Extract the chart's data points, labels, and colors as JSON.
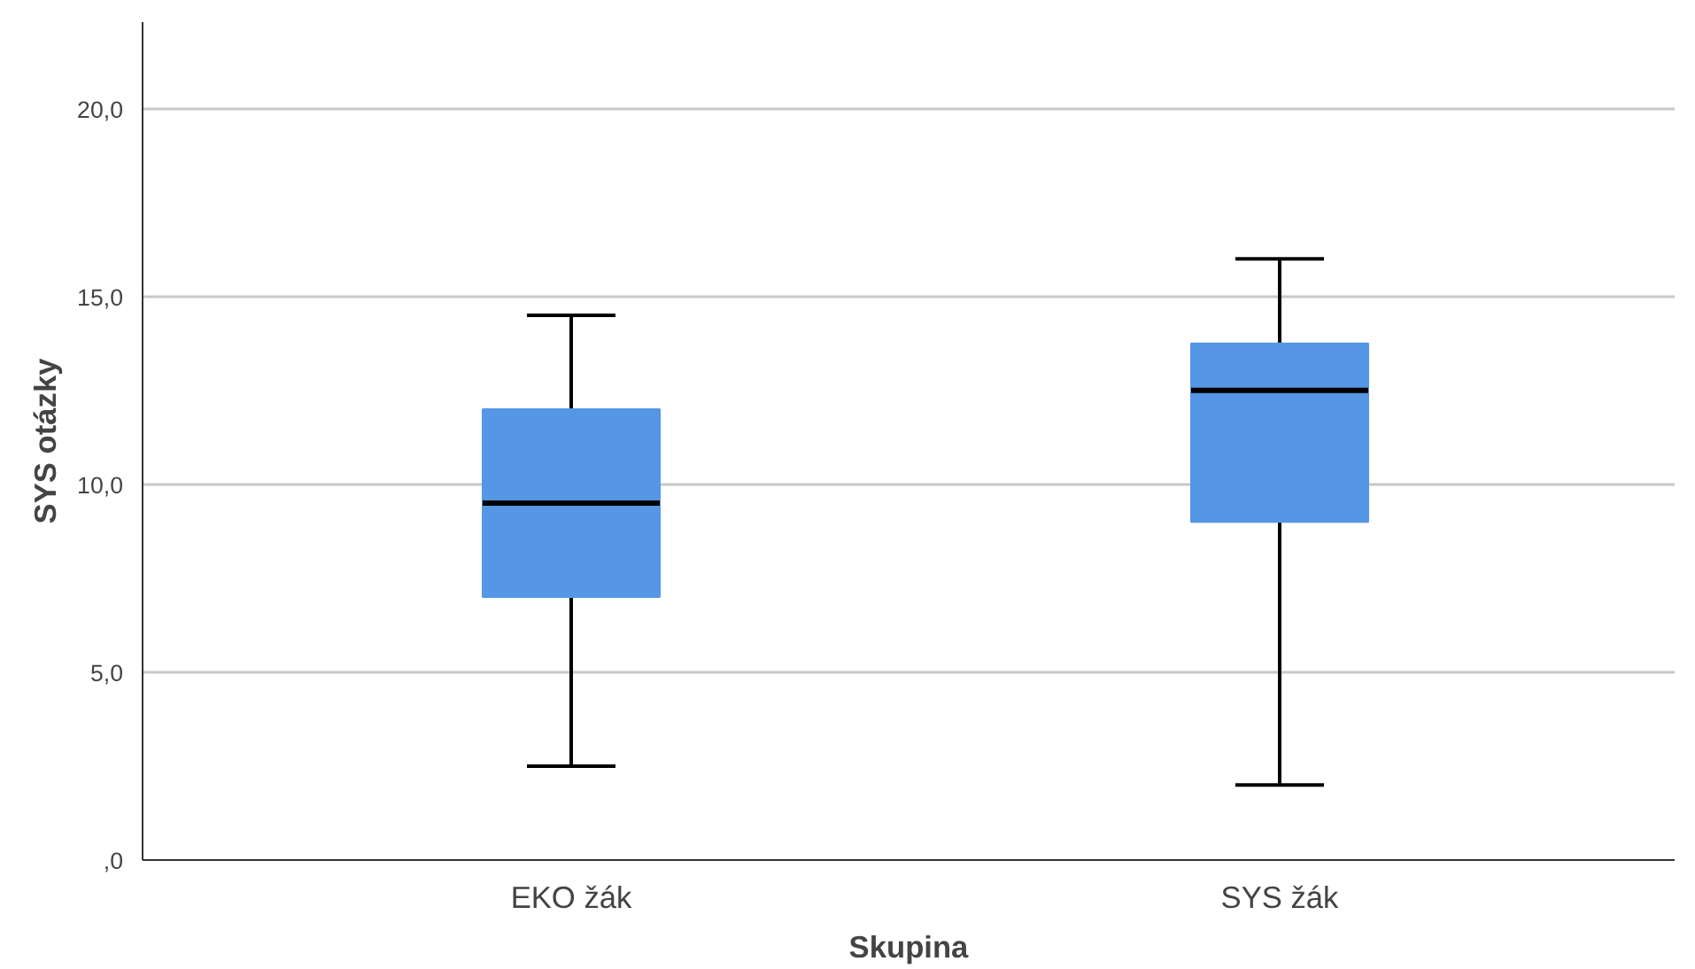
{
  "chart_data": {
    "type": "box",
    "xlabel": "Skupina",
    "ylabel": "SYS otázky",
    "categories": [
      "EKO žák",
      "SYS žák"
    ],
    "boxes": [
      {
        "low": 2.5,
        "q1": 7.0,
        "median": 9.5,
        "q3": 12.0,
        "high": 14.5
      },
      {
        "low": 2.0,
        "q1": 9.0,
        "median": 12.5,
        "q3": 13.75,
        "high": 16.0
      }
    ],
    "color": "#5596e5",
    "ylim": [
      0,
      22.3
    ],
    "yticks": [
      {
        "value": 0,
        "label": ",0"
      },
      {
        "value": 5,
        "label": "5,0"
      },
      {
        "value": 10,
        "label": "10,0"
      },
      {
        "value": 15,
        "label": "15,0"
      },
      {
        "value": 20,
        "label": "20,0"
      }
    ],
    "grid": "y"
  }
}
